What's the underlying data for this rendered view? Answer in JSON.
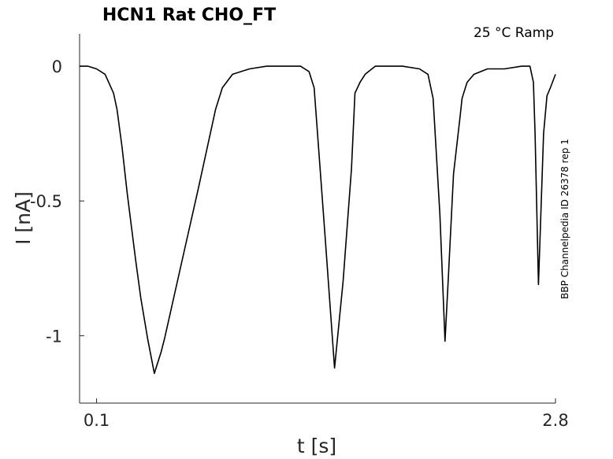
{
  "chart_data": {
    "type": "line",
    "title": "HCN1  Rat  CHO_FT",
    "condition": "25 °C  Ramp",
    "side_label": "BBP Channelpedia ID 26378 rep 1",
    "xlabel": "t [s]",
    "ylabel": "I [nA]",
    "xlim": [
      0.0,
      2.8
    ],
    "ylim": [
      -1.25,
      0.12
    ],
    "x_ticks": [
      {
        "value": 0.1,
        "label": "0.1"
      },
      {
        "value": 2.8,
        "label": "2.8"
      }
    ],
    "y_ticks": [
      {
        "value": 0,
        "label": "0"
      },
      {
        "value": -0.5,
        "label": "-0.5"
      },
      {
        "value": -1,
        "label": "-1"
      }
    ],
    "grid": false,
    "line_color": "#000000",
    "series": [
      {
        "x": [
          0.0,
          0.05,
          0.1,
          0.15,
          0.2,
          0.22,
          0.25,
          0.28,
          0.3,
          0.33,
          0.36,
          0.4,
          0.44,
          0.48,
          0.5,
          0.6,
          0.7,
          0.8,
          0.84,
          0.9,
          0.95,
          1.0,
          1.1,
          1.2,
          1.3,
          1.35,
          1.38,
          1.4,
          1.45,
          1.5,
          1.55,
          1.6,
          1.62,
          1.65,
          1.68,
          1.7,
          1.72,
          1.74,
          1.76,
          1.8,
          1.9,
          2.0,
          2.05,
          2.08,
          2.12,
          2.15,
          2.17,
          2.2,
          2.24,
          2.25,
          2.26,
          2.28,
          2.32,
          2.4,
          2.5,
          2.6,
          2.65,
          2.67,
          2.68,
          2.7,
          2.73,
          2.75,
          2.77,
          2.8
        ],
        "y": [
          0.0,
          0.0,
          -0.01,
          -0.03,
          -0.1,
          -0.16,
          -0.3,
          -0.47,
          -0.57,
          -0.72,
          -0.86,
          -1.01,
          -1.14,
          -1.06,
          -1.01,
          -0.73,
          -0.45,
          -0.16,
          -0.08,
          -0.03,
          -0.02,
          -0.01,
          -0.0,
          0.0,
          0.0,
          -0.02,
          -0.08,
          -0.25,
          -0.68,
          -1.12,
          -0.8,
          -0.38,
          -0.1,
          -0.06,
          -0.03,
          -0.02,
          -0.01,
          -0.0,
          0.0,
          0.0,
          0.0,
          -0.01,
          -0.03,
          -0.12,
          -0.55,
          -1.02,
          -0.78,
          -0.4,
          -0.18,
          -0.12,
          -0.1,
          -0.06,
          -0.03,
          -0.01,
          -0.01,
          0.0,
          0.0,
          -0.06,
          -0.25,
          -0.81,
          -0.25,
          -0.11,
          -0.08,
          -0.03
        ]
      }
    ]
  }
}
